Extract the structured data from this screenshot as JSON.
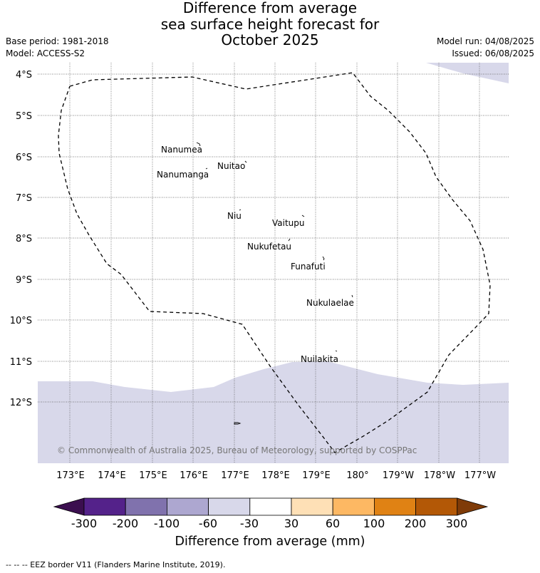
{
  "header": {
    "title_lines": [
      "Difference from average",
      "sea surface height forecast for",
      "October 2025"
    ],
    "base_period": "Base period: 1981-2018",
    "model": "Model: ACCESS-S2",
    "model_run": "Model run: 04/08/2025",
    "issued": "Issued: 06/08/2025"
  },
  "map": {
    "lat_labels": [
      "4°S",
      "5°S",
      "6°S",
      "7°S",
      "8°S",
      "9°S",
      "10°S",
      "11°S",
      "12°S"
    ],
    "lon_labels": [
      "173°E",
      "174°E",
      "175°E",
      "176°E",
      "177°E",
      "178°E",
      "179°E",
      "180°",
      "179°W",
      "178°W",
      "177°W"
    ],
    "places": [
      "Nanumea",
      "Nuitao",
      "Nanumanga",
      "Niu",
      "Vaitupu",
      "Nukufetau",
      "Funafuti",
      "Nukulaelae",
      "Nuilakita"
    ],
    "copyright": "© Commonwealth of Australia 2025, Bureau of Meteorology, supported by COSPPac",
    "shading_meaning": "-30 to -60 mm category shown as light lavender"
  },
  "colorbar": {
    "ticks": [
      "-300",
      "-200",
      "-100",
      "-60",
      "-30",
      "30",
      "60",
      "100",
      "200",
      "300"
    ],
    "colors": [
      "#3b0f4f",
      "#54228a",
      "#8072ad",
      "#ada7d0",
      "#d8d8ea",
      "#ffffff",
      "#fee0b6",
      "#fdb863",
      "#e08214",
      "#b35806",
      "#7f3b08"
    ],
    "label": "Difference from average (mm)"
  },
  "footer": {
    "eez_legend": "--  --  -- EEZ border V11 (Flanders Marine Institute, 2019)."
  }
}
